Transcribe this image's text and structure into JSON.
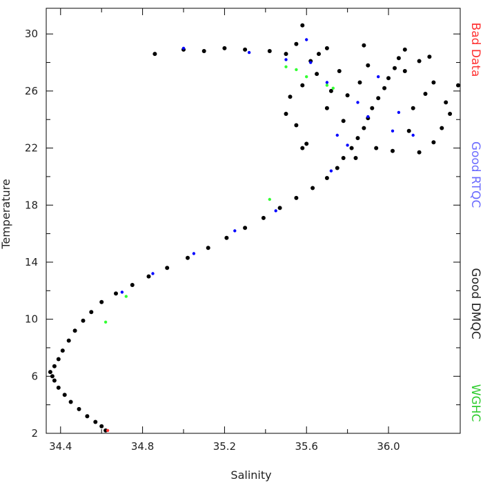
{
  "chart_data": {
    "type": "scatter",
    "title": "",
    "xlabel": "Salinity",
    "ylabel": "Temperature",
    "xlim": [
      34.33,
      36.35
    ],
    "ylim": [
      2,
      31.8
    ],
    "x_ticks": [
      34.4,
      34.8,
      35.2,
      35.6,
      36.0
    ],
    "y_ticks": [
      2,
      6,
      10,
      14,
      18,
      22,
      26,
      30
    ],
    "x_tick_labels": [
      "34.4",
      "34.8",
      "35.2",
      "35.6",
      "36.0"
    ],
    "y_tick_labels": [
      "2",
      "6",
      "10",
      "14",
      "18",
      "22",
      "26",
      "30"
    ],
    "grid": false,
    "legend_position": "right, vertical",
    "legend": [
      {
        "label": "Bad Data",
        "color": "#ff3030"
      },
      {
        "label": "Good RTQC",
        "color": "#6a6aff"
      },
      {
        "label": "Good DMQC",
        "color": "#222222"
      },
      {
        "label": "WGHC",
        "color": "#2ecc2e"
      }
    ],
    "series": [
      {
        "name": "Good DMQC",
        "color": "#000000",
        "points": [
          [
            34.62,
            2.2
          ],
          [
            34.6,
            2.5
          ],
          [
            34.57,
            2.8
          ],
          [
            34.53,
            3.2
          ],
          [
            34.49,
            3.7
          ],
          [
            34.45,
            4.2
          ],
          [
            34.42,
            4.7
          ],
          [
            34.39,
            5.2
          ],
          [
            34.37,
            5.7
          ],
          [
            34.36,
            6.0
          ],
          [
            34.35,
            6.3
          ],
          [
            34.37,
            6.7
          ],
          [
            34.39,
            7.2
          ],
          [
            34.41,
            7.8
          ],
          [
            34.44,
            8.5
          ],
          [
            34.47,
            9.2
          ],
          [
            34.51,
            9.9
          ],
          [
            34.55,
            10.5
          ],
          [
            34.6,
            11.2
          ],
          [
            34.67,
            11.8
          ],
          [
            34.75,
            12.4
          ],
          [
            34.83,
            13.0
          ],
          [
            34.92,
            13.6
          ],
          [
            35.02,
            14.3
          ],
          [
            35.12,
            15.0
          ],
          [
            35.21,
            15.7
          ],
          [
            35.3,
            16.4
          ],
          [
            35.39,
            17.1
          ],
          [
            35.47,
            17.8
          ],
          [
            35.55,
            18.5
          ],
          [
            35.63,
            19.2
          ],
          [
            35.7,
            19.9
          ],
          [
            35.75,
            20.6
          ],
          [
            35.78,
            21.3
          ],
          [
            35.82,
            22.0
          ],
          [
            35.85,
            22.7
          ],
          [
            35.88,
            23.4
          ],
          [
            35.9,
            24.1
          ],
          [
            35.92,
            24.8
          ],
          [
            35.95,
            25.5
          ],
          [
            35.98,
            26.2
          ],
          [
            36.0,
            26.9
          ],
          [
            36.03,
            27.6
          ],
          [
            36.05,
            28.3
          ],
          [
            36.08,
            28.9
          ],
          [
            35.88,
            29.2
          ],
          [
            35.7,
            29.0
          ],
          [
            35.55,
            29.3
          ],
          [
            35.5,
            28.6
          ],
          [
            35.42,
            28.8
          ],
          [
            35.3,
            28.9
          ],
          [
            35.2,
            29.0
          ],
          [
            35.1,
            28.8
          ],
          [
            35.0,
            28.9
          ],
          [
            34.86,
            28.6
          ],
          [
            35.58,
            30.6
          ],
          [
            35.62,
            28.1
          ],
          [
            35.65,
            27.2
          ],
          [
            35.58,
            26.4
          ],
          [
            35.52,
            25.6
          ],
          [
            35.5,
            24.4
          ],
          [
            35.55,
            23.6
          ],
          [
            35.6,
            22.3
          ],
          [
            35.58,
            22.0
          ],
          [
            35.7,
            24.8
          ],
          [
            35.78,
            23.9
          ],
          [
            35.8,
            25.7
          ],
          [
            35.86,
            26.6
          ],
          [
            36.12,
            24.8
          ],
          [
            36.18,
            25.8
          ],
          [
            36.22,
            26.6
          ],
          [
            36.28,
            25.2
          ],
          [
            36.34,
            26.4
          ],
          [
            36.3,
            24.4
          ],
          [
            36.26,
            23.4
          ],
          [
            36.22,
            22.4
          ],
          [
            36.15,
            21.7
          ],
          [
            36.1,
            23.2
          ],
          [
            36.08,
            27.4
          ],
          [
            36.15,
            28.1
          ],
          [
            35.94,
            22.0
          ],
          [
            36.02,
            21.8
          ],
          [
            35.84,
            21.3
          ],
          [
            35.9,
            27.8
          ],
          [
            35.76,
            27.4
          ],
          [
            35.72,
            26.0
          ],
          [
            35.66,
            28.6
          ],
          [
            36.2,
            28.4
          ]
        ]
      },
      {
        "name": "Good RTQC",
        "color": "#0000ff",
        "points": [
          [
            34.7,
            11.9
          ],
          [
            34.85,
            13.2
          ],
          [
            35.05,
            14.6
          ],
          [
            35.25,
            16.2
          ],
          [
            35.45,
            17.6
          ],
          [
            35.72,
            20.4
          ],
          [
            35.8,
            22.2
          ],
          [
            35.9,
            24.2
          ],
          [
            36.02,
            23.2
          ],
          [
            35.62,
            28.0
          ],
          [
            35.7,
            26.6
          ],
          [
            35.85,
            25.2
          ],
          [
            36.05,
            24.5
          ],
          [
            35.32,
            28.7
          ],
          [
            35.5,
            28.2
          ],
          [
            35.75,
            22.9
          ],
          [
            35.95,
            27.0
          ],
          [
            36.12,
            22.9
          ],
          [
            35.6,
            29.6
          ],
          [
            35.0,
            29.0
          ]
        ]
      },
      {
        "name": "WGHC",
        "color": "#33ff33",
        "points": [
          [
            34.72,
            11.6
          ],
          [
            34.62,
            9.8
          ],
          [
            35.5,
            27.7
          ],
          [
            35.55,
            27.5
          ],
          [
            35.7,
            26.4
          ],
          [
            35.73,
            26.2
          ],
          [
            35.42,
            18.4
          ],
          [
            35.6,
            27.0
          ]
        ]
      },
      {
        "name": "Bad Data",
        "color": "#ff3030",
        "points": [
          [
            34.63,
            2.2
          ]
        ]
      }
    ]
  }
}
